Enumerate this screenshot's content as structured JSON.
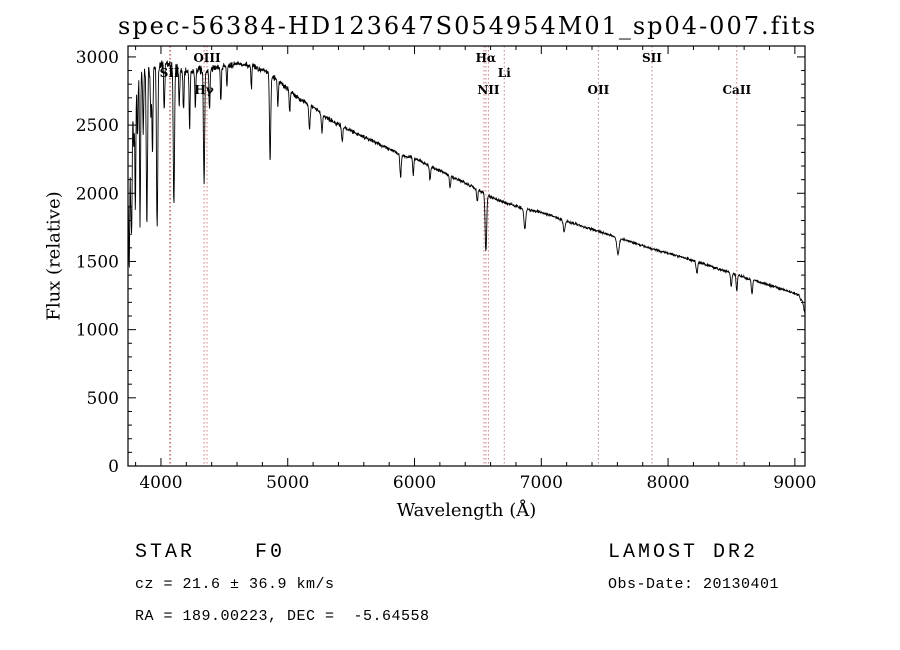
{
  "header": {
    "title": "spec-56384-HD123647S054954M01_sp04-007.fits"
  },
  "chart_data": {
    "type": "line",
    "title": "spec-56384-HD123647S054954M01_sp04-007.fits",
    "xlabel": "Wavelength (Å)",
    "ylabel": "Flux (relative)",
    "xlim": [
      3740,
      9080
    ],
    "ylim": [
      0,
      3080
    ],
    "xticks": [
      4000,
      5000,
      6000,
      7000,
      8000,
      9000
    ],
    "yticks": [
      0,
      500,
      1000,
      1500,
      2000,
      2500,
      3000
    ],
    "x_minor_step": 200,
    "y_minor_step": 100,
    "grid": false,
    "line_color": "#000000",
    "marker_line_color": "#c87d7d",
    "marker_label_color": "#000000",
    "markers": [
      {
        "x": 4068,
        "label": "SII",
        "row": 2
      },
      {
        "x": 4076,
        "label": "",
        "row": 0
      },
      {
        "x": 4340,
        "label": "Hγ",
        "row": 3
      },
      {
        "x": 4363,
        "label": "OIII",
        "row": 1
      },
      {
        "x": 6548,
        "label": "",
        "row": 0
      },
      {
        "x": 6563,
        "label": "Hα",
        "row": 1
      },
      {
        "x": 6583,
        "label": "NII",
        "row": 3
      },
      {
        "x": 6708,
        "label": "Li",
        "row": 2
      },
      {
        "x": 7450,
        "label": "OII",
        "row": 3
      },
      {
        "x": 7873,
        "label": "SII",
        "row": 1
      },
      {
        "x": 8542,
        "label": "CaII",
        "row": 3
      }
    ],
    "continuum": [
      [
        3740,
        1900
      ],
      [
        3748,
        2350
      ],
      [
        3758,
        2650
      ],
      [
        3775,
        2790
      ],
      [
        3800,
        2850
      ],
      [
        3850,
        2890
      ],
      [
        3900,
        2915
      ],
      [
        3950,
        2930
      ],
      [
        4000,
        2945
      ],
      [
        4050,
        2945
      ],
      [
        4100,
        2930
      ],
      [
        4150,
        2905
      ],
      [
        4200,
        2890
      ],
      [
        4250,
        2895
      ],
      [
        4300,
        2905
      ],
      [
        4350,
        2900
      ],
      [
        4400,
        2915
      ],
      [
        4450,
        2925
      ],
      [
        4500,
        2935
      ],
      [
        4550,
        2945
      ],
      [
        4600,
        2950
      ],
      [
        4650,
        2945
      ],
      [
        4700,
        2935
      ],
      [
        4750,
        2920
      ],
      [
        4800,
        2905
      ],
      [
        4850,
        2890
      ],
      [
        4900,
        2845
      ],
      [
        4950,
        2805
      ],
      [
        5000,
        2765
      ],
      [
        5050,
        2725
      ],
      [
        5100,
        2690
      ],
      [
        5150,
        2660
      ],
      [
        5200,
        2630
      ],
      [
        5250,
        2595
      ],
      [
        5300,
        2560
      ],
      [
        5350,
        2530
      ],
      [
        5400,
        2500
      ],
      [
        5450,
        2480
      ],
      [
        5500,
        2460
      ],
      [
        5550,
        2435
      ],
      [
        5600,
        2415
      ],
      [
        5700,
        2370
      ],
      [
        5800,
        2325
      ],
      [
        5900,
        2280
      ],
      [
        6000,
        2255
      ],
      [
        6100,
        2210
      ],
      [
        6200,
        2165
      ],
      [
        6300,
        2120
      ],
      [
        6400,
        2075
      ],
      [
        6500,
        2025
      ],
      [
        6600,
        1975
      ],
      [
        6700,
        1935
      ],
      [
        6800,
        1905
      ],
      [
        6900,
        1880
      ],
      [
        7000,
        1860
      ],
      [
        7100,
        1830
      ],
      [
        7200,
        1795
      ],
      [
        7300,
        1765
      ],
      [
        7400,
        1735
      ],
      [
        7500,
        1705
      ],
      [
        7600,
        1675
      ],
      [
        7700,
        1645
      ],
      [
        7800,
        1615
      ],
      [
        7900,
        1585
      ],
      [
        8000,
        1560
      ],
      [
        8100,
        1535
      ],
      [
        8200,
        1505
      ],
      [
        8300,
        1475
      ],
      [
        8400,
        1445
      ],
      [
        8500,
        1415
      ],
      [
        8600,
        1385
      ],
      [
        8700,
        1355
      ],
      [
        8800,
        1325
      ],
      [
        8900,
        1295
      ],
      [
        9000,
        1265
      ],
      [
        9035,
        1245
      ],
      [
        9060,
        1205
      ],
      [
        9080,
        1110
      ]
    ],
    "absorption_lines": [
      [
        3750,
        950,
        4
      ],
      [
        3762,
        700,
        4
      ],
      [
        3770,
        900,
        4
      ],
      [
        3785,
        500,
        4
      ],
      [
        3798,
        1000,
        4
      ],
      [
        3815,
        450,
        4
      ],
      [
        3835,
        1100,
        4
      ],
      [
        3860,
        450,
        4
      ],
      [
        3889,
        1150,
        5
      ],
      [
        3920,
        350,
        4
      ],
      [
        3933,
        650,
        4
      ],
      [
        3970,
        1200,
        5
      ],
      [
        4026,
        350,
        4
      ],
      [
        4102,
        1000,
        5
      ],
      [
        4144,
        250,
        4
      ],
      [
        4178,
        280,
        4
      ],
      [
        4226,
        420,
        4
      ],
      [
        4271,
        250,
        4
      ],
      [
        4340,
        830,
        5
      ],
      [
        4383,
        320,
        4
      ],
      [
        4472,
        260,
        4
      ],
      [
        4520,
        150,
        4
      ],
      [
        4713,
        160,
        4
      ],
      [
        4861,
        650,
        5
      ],
      [
        4922,
        190,
        4
      ],
      [
        5015,
        160,
        4
      ],
      [
        5172,
        180,
        5
      ],
      [
        5270,
        130,
        5
      ],
      [
        5430,
        100,
        5
      ],
      [
        5890,
        170,
        5
      ],
      [
        5990,
        120,
        4
      ],
      [
        6122,
        100,
        5
      ],
      [
        6280,
        90,
        5
      ],
      [
        6495,
        80,
        5
      ],
      [
        6563,
        420,
        6
      ],
      [
        6870,
        150,
        7
      ],
      [
        7180,
        90,
        7
      ],
      [
        7605,
        120,
        9
      ],
      [
        8227,
        80,
        6
      ],
      [
        8498,
        100,
        5
      ],
      [
        8542,
        120,
        5
      ],
      [
        8662,
        110,
        5
      ]
    ],
    "noise_profile": [
      [
        3740,
        65
      ],
      [
        3850,
        55
      ],
      [
        3950,
        50
      ],
      [
        4100,
        45
      ],
      [
        4300,
        38
      ],
      [
        4600,
        30
      ],
      [
        4900,
        26
      ],
      [
        5200,
        22
      ],
      [
        5500,
        19
      ],
      [
        5800,
        17
      ],
      [
        6100,
        15
      ],
      [
        6500,
        14
      ],
      [
        7000,
        12
      ],
      [
        7500,
        11
      ],
      [
        8000,
        11
      ],
      [
        8500,
        12
      ],
      [
        9000,
        13
      ],
      [
        9080,
        16
      ]
    ],
    "noise_seed": 7,
    "sample_step": 2.5
  },
  "footer": {
    "class_label": "STAR    F0",
    "survey": "LAMOST DR2",
    "cz": "cz = 21.6 ± 36.9 km/s",
    "obs_date": "Obs-Date: 20130401",
    "radec": "RA = 189.00223, DEC =  -5.64558"
  }
}
